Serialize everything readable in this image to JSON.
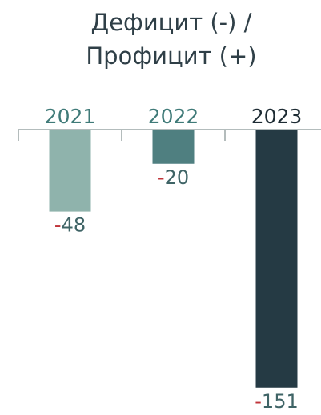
{
  "chart_data": {
    "type": "bar",
    "title": [
      "Дефицит (-) /",
      "Профицит (+)"
    ],
    "categories": [
      "2021",
      "2022",
      "2023"
    ],
    "values": [
      -48,
      -20,
      -151
    ],
    "colors": [
      "#8fb3ac",
      "#4f7f80",
      "#253a44"
    ],
    "category_label_colors": [
      "#3f7a78",
      "#3f7a78",
      "#1d2b33"
    ],
    "negative_sign_color": "#c0343a",
    "ylim": [
      -160,
      0
    ]
  }
}
